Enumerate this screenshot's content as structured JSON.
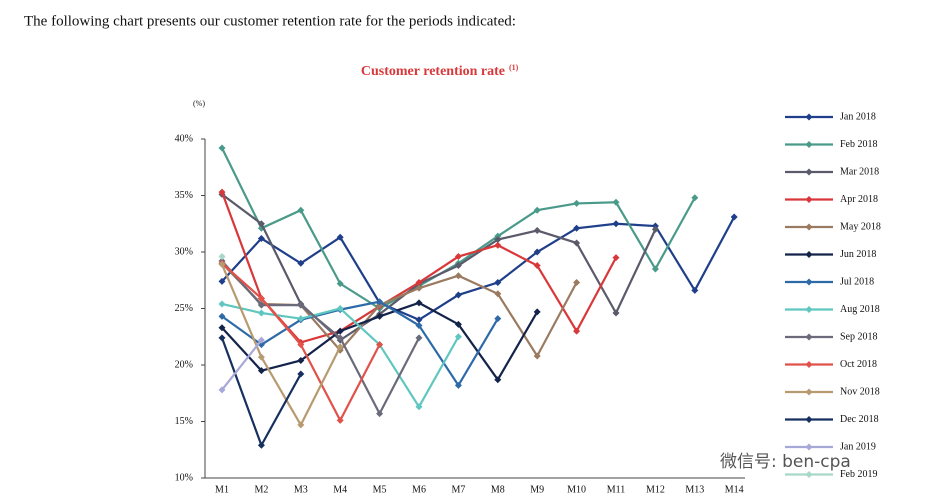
{
  "intro": "The following chart presents our customer retention rate for the periods indicated:",
  "watermark": "微信号: ben-cpa",
  "chart_data": {
    "type": "line",
    "title": "Customer retention rate",
    "title_note": "(1)",
    "y_label": "(%)",
    "categories": [
      "M1",
      "M2",
      "M3",
      "M4",
      "M5",
      "M6",
      "M7",
      "M8",
      "M9",
      "M10",
      "M11",
      "M12",
      "M13",
      "M14"
    ],
    "ylim": [
      10,
      40
    ],
    "yticks": [
      {
        "value": 10,
        "label": "10%"
      },
      {
        "value": 15,
        "label": "15%"
      },
      {
        "value": 20,
        "label": "20%"
      },
      {
        "value": 25,
        "label": "25%"
      },
      {
        "value": 30,
        "label": "30%"
      },
      {
        "value": 35,
        "label": "35%"
      },
      {
        "value": 40,
        "label": "40%"
      }
    ],
    "grid": false,
    "legend": "right",
    "series": [
      {
        "name": "Jan 2018",
        "color": "#1f3f8a",
        "values": [
          27.4,
          31.2,
          29.0,
          31.3,
          25.5,
          24.0,
          26.2,
          27.3,
          30.0,
          32.1,
          32.5,
          32.3,
          26.6,
          33.1
        ]
      },
      {
        "name": "Feb 2018",
        "color": "#4a9a8a",
        "values": [
          39.2,
          32.1,
          33.7,
          27.2,
          25.0,
          27.0,
          29.0,
          31.4,
          33.7,
          34.3,
          34.4,
          28.5,
          34.8,
          null
        ]
      },
      {
        "name": "Mar 2018",
        "color": "#5a5a6a",
        "values": [
          35.1,
          32.5,
          25.4,
          22.2,
          24.5,
          27.2,
          28.8,
          31.1,
          31.9,
          30.8,
          24.6,
          32.0,
          null,
          null
        ]
      },
      {
        "name": "Apr 2018",
        "color": "#d9383a",
        "values": [
          35.3,
          25.9,
          22.0,
          23.0,
          25.2,
          27.3,
          29.6,
          30.6,
          28.8,
          23.0,
          29.5,
          null,
          null,
          null
        ]
      },
      {
        "name": "May 2018",
        "color": "#9a7a60",
        "values": [
          29.0,
          25.4,
          25.3,
          21.3,
          25.3,
          26.8,
          27.9,
          26.3,
          20.8,
          27.3,
          null,
          null,
          null,
          null
        ]
      },
      {
        "name": "Jun 2018",
        "color": "#14234a",
        "values": [
          23.3,
          19.5,
          20.4,
          23.0,
          24.3,
          25.5,
          23.6,
          18.7,
          24.7,
          null,
          null,
          null,
          null,
          null
        ]
      },
      {
        "name": "Jul 2018",
        "color": "#2e6aa8",
        "values": [
          24.3,
          21.8,
          24.0,
          24.9,
          25.6,
          23.5,
          18.2,
          24.1,
          null,
          null,
          null,
          null,
          null,
          null
        ]
      },
      {
        "name": "Aug 2018",
        "color": "#5fc7c0",
        "values": [
          25.4,
          24.6,
          24.1,
          25.0,
          21.8,
          16.3,
          22.5,
          null,
          null,
          null,
          null,
          null,
          null,
          null
        ]
      },
      {
        "name": "Sep 2018",
        "color": "#6a6a7a",
        "values": [
          29.2,
          25.3,
          25.3,
          22.4,
          15.7,
          22.4,
          null,
          null,
          null,
          null,
          null,
          null,
          null,
          null
        ]
      },
      {
        "name": "Oct 2018",
        "color": "#e0524a",
        "values": [
          29.0,
          25.9,
          21.8,
          15.1,
          21.8,
          null,
          null,
          null,
          null,
          null,
          null,
          null,
          null,
          null
        ]
      },
      {
        "name": "Nov 2018",
        "color": "#b89a70",
        "values": [
          28.9,
          20.7,
          14.7,
          21.6,
          null,
          null,
          null,
          null,
          null,
          null,
          null,
          null,
          null,
          null
        ]
      },
      {
        "name": "Dec 2018",
        "color": "#163060",
        "values": [
          22.4,
          12.9,
          19.2,
          null,
          null,
          null,
          null,
          null,
          null,
          null,
          null,
          null,
          null,
          null
        ]
      },
      {
        "name": "Jan 2019",
        "color": "#a8a8d8",
        "values": [
          17.8,
          22.2,
          null,
          null,
          null,
          null,
          null,
          null,
          null,
          null,
          null,
          null,
          null,
          null
        ]
      },
      {
        "name": "Feb 2019",
        "color": "#a8d8c8",
        "values": [
          29.6,
          null,
          null,
          null,
          null,
          null,
          null,
          null,
          null,
          null,
          null,
          null,
          null,
          null
        ]
      }
    ]
  }
}
